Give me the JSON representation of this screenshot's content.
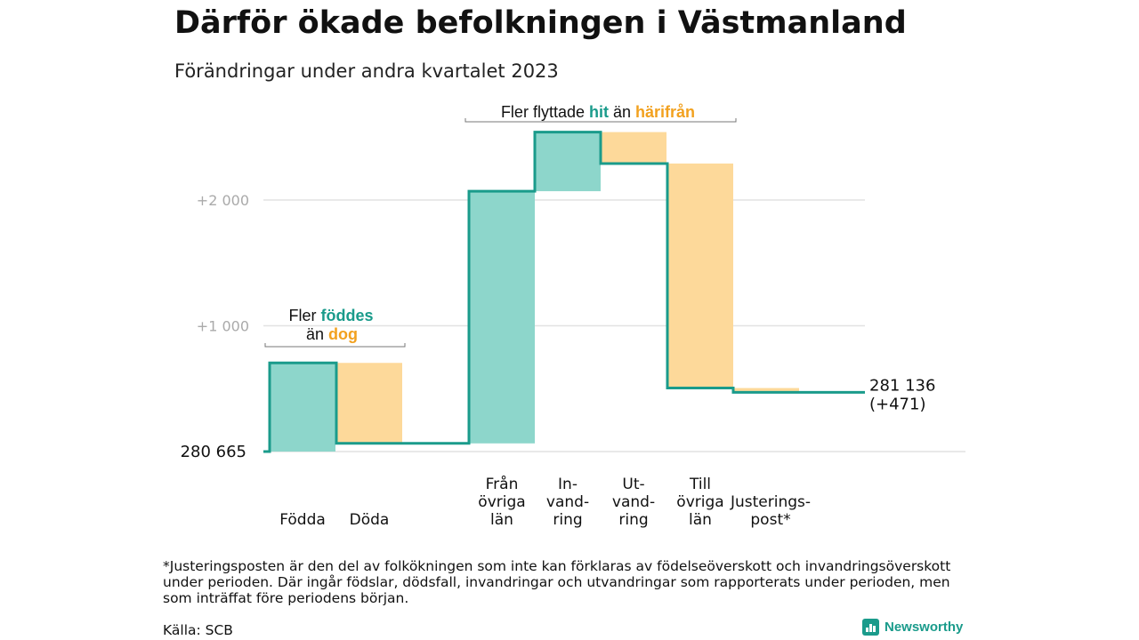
{
  "title": "Därför ökade befolkningen i Västmanland",
  "subtitle": "Förändringar under andra kvartalet 2023",
  "footnote": "*Justeringsposten är den del av folkökningen som inte kan förklaras av födelseöverskott och invandringsöverskott under perioden. Där ingår födslar, dödsfall, invandringar och utvandringar som rapporterats under perioden, men som inträffat före periodens början.",
  "source": "Källa: SCB",
  "brand": "Newsworthy",
  "colors": {
    "increase": "#8dd6cb",
    "decrease": "#fdd99a",
    "line": "#1a9b8b",
    "teal_text": "#1a9b8b",
    "orange_text": "#f2a11f",
    "grid": "#e2e2e2",
    "tick": "#aaaaaa"
  },
  "annotations": {
    "births": {
      "line1": "Fler ",
      "line1_hl": "föddes",
      "line2": "än ",
      "line2_hl": "dog"
    },
    "migration": {
      "text": "Fler flyttade ",
      "hl1": "hit",
      "mid": " än ",
      "hl2": "härifrån"
    }
  },
  "chart_data": {
    "type": "waterfall",
    "start": {
      "value": 280665,
      "label": "280 665"
    },
    "end": {
      "value": 281136,
      "label": "281 136",
      "change_label": "(+471)"
    },
    "y_ticks": [
      {
        "value": 1000,
        "label": "+1 000"
      },
      {
        "value": 2000,
        "label": "+2 000"
      }
    ],
    "steps": [
      {
        "label": [
          "Födda"
        ],
        "change": 705,
        "kind": "increase"
      },
      {
        "label": [
          "Döda"
        ],
        "change": -640,
        "kind": "decrease"
      },
      {
        "label": [
          "Från",
          "övriga",
          "län"
        ],
        "change": 2005,
        "kind": "increase"
      },
      {
        "label": [
          "In-",
          "vand-",
          "ring"
        ],
        "change": 470,
        "kind": "increase"
      },
      {
        "label": [
          "Ut-",
          "vand-",
          "ring"
        ],
        "change": -250,
        "kind": "decrease"
      },
      {
        "label": [
          "Till",
          "övriga",
          "län"
        ],
        "change": -1785,
        "kind": "decrease"
      },
      {
        "label": [
          "Justerings-",
          "post*"
        ],
        "change": -34,
        "kind": "decrease"
      }
    ]
  }
}
